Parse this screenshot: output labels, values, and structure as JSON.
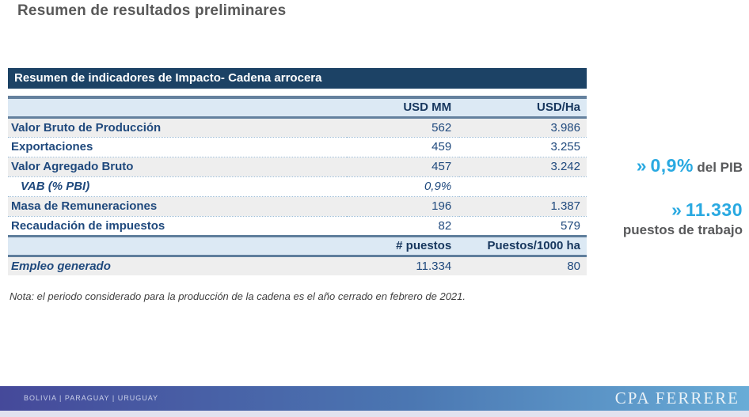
{
  "slide": {
    "title": "Resumen de resultados preliminares"
  },
  "table": {
    "title": "Resumen de indicadores de Impacto- Cadena arrocera",
    "header1": {
      "col1": "USD MM",
      "col2": "USD/Ha"
    },
    "rows": [
      {
        "label": "Valor Bruto de Producción",
        "usd_mm": "562",
        "usd_ha": "3.986"
      },
      {
        "label": "Exportaciones",
        "usd_mm": "459",
        "usd_ha": "3.255"
      },
      {
        "label": "Valor Agregado Bruto",
        "usd_mm": "457",
        "usd_ha": "3.242"
      },
      {
        "label": "VAB (% PBI)",
        "usd_mm": "0,9%",
        "usd_ha": ""
      },
      {
        "label": "Masa de Remuneraciones",
        "usd_mm": "196",
        "usd_ha": "1.387"
      },
      {
        "label": "Recaudación de impuestos",
        "usd_mm": "82",
        "usd_ha": "579"
      }
    ],
    "header2": {
      "col1": "# puestos",
      "col2": "Puestos/1000 ha"
    },
    "employment_row": {
      "label": "Empleo generado",
      "puestos": "11.334",
      "puestos_1000ha": "80"
    }
  },
  "note": "Nota: el periodo considerado para la producción de la cadena es el año cerrado en febrero de 2021.",
  "callouts": [
    {
      "chevron": "»",
      "value": "0,9%",
      "label": "del PIB"
    },
    {
      "chevron": "»",
      "value": "11.330",
      "label": "puestos de trabajo"
    }
  ],
  "footer": {
    "countries": "BOLIVIA | PARAGUAY | URUGUAY",
    "brand": "CPA FERRERE"
  },
  "colors": {
    "header_navy": "#1c4265",
    "table_text_blue": "#1F497D",
    "header_light_blue": "#dce9f4",
    "row_shade_gray": "#eeeeee",
    "accent_cyan": "#29a9e1",
    "callout_gray": "#58595b",
    "footer_gradient_left": "#45499a",
    "footer_gradient_right": "#68acd7"
  }
}
